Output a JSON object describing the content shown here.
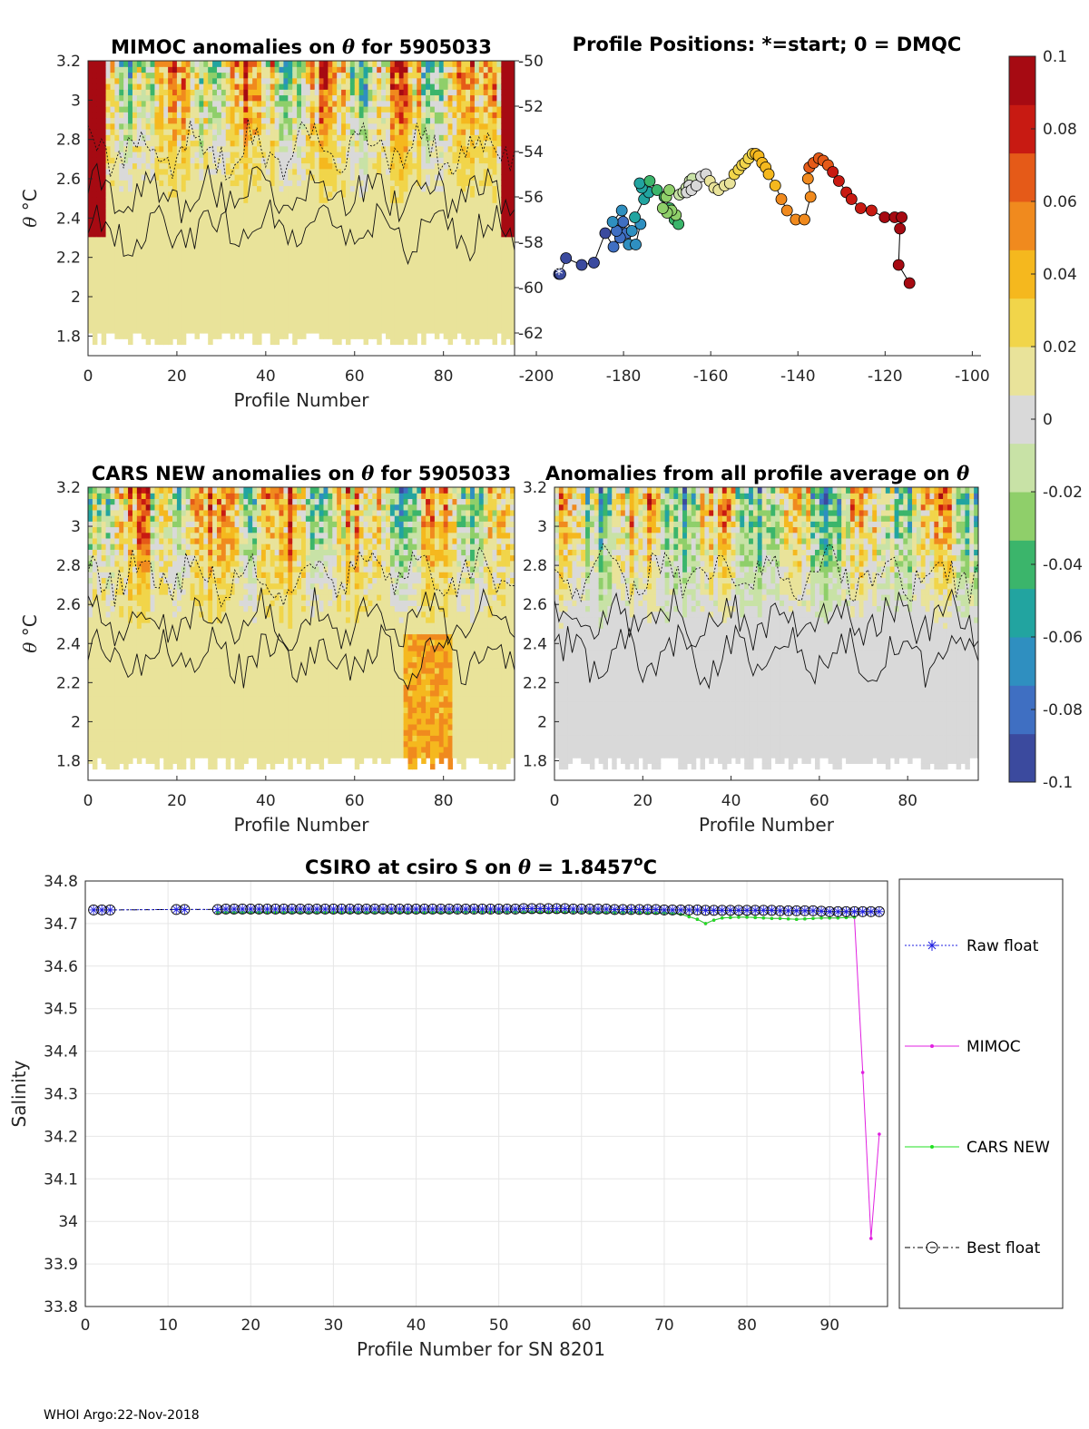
{
  "footer": "WHOI Argo:22-Nov-2018",
  "colors": {
    "colormap": [
      "#3b4a9e",
      "#3f6fc2",
      "#2f8fc0",
      "#22a4a0",
      "#3bb56b",
      "#8fcf6a",
      "#c8e2a6",
      "#d9d9d9",
      "#e9e39a",
      "#f1d54a",
      "#f5b81e",
      "#f08a1e",
      "#e55a18",
      "#c81a12",
      "#a60a12"
    ],
    "raw_float": "#1f1fe0",
    "mimoc": "#e020e0",
    "cars": "#20e020",
    "best": "#000000"
  },
  "chart_data": [
    {
      "id": "mimoc",
      "type": "heatmap",
      "title": "MIMOC anomalies on θ  for 5905033",
      "xlabel": "Profile Number",
      "ylabel": "θ °C",
      "xlim": [
        0,
        96
      ],
      "ylim": [
        1.7,
        3.2
      ],
      "xticks": [
        0,
        20,
        40,
        60,
        80
      ],
      "yticks": [
        1.8,
        2,
        2.2,
        2.4,
        2.6,
        2.8,
        3,
        3.2
      ],
      "ytick_labels": [
        "1.8",
        "2",
        "2.2",
        "2.4",
        "2.6",
        "2.8",
        "3",
        "3.2"
      ],
      "seed": 7
    },
    {
      "id": "positions",
      "type": "scatter",
      "title": "Profile Positions: *=start; 0 = DMQC",
      "xlim": [
        -205,
        -98
      ],
      "ylim": [
        -63,
        -50
      ],
      "xticks": [
        -200,
        -180,
        -160,
        -140,
        -120,
        -100
      ],
      "yticks": [
        -62,
        -60,
        -58,
        -56,
        -54,
        -52,
        -50
      ],
      "lon": [
        -194.8,
        -194.5,
        -193.2,
        -189.6,
        -186.8,
        -184.2,
        -182.3,
        -181.2,
        -180.1,
        -179.3,
        -180.8,
        -181.6,
        -182.5,
        -180.4,
        -178.1,
        -178.8,
        -177.2,
        -176.1,
        -177.4,
        -175.3,
        -174.2,
        -175.8,
        -176.3,
        -174.0,
        -172.3,
        -170.6,
        -169.4,
        -168.3,
        -167.4,
        -168.0,
        -169.0,
        -170.0,
        -171.0,
        -170.2,
        -169.5,
        -167.2,
        -166.3,
        -165.6,
        -164.8,
        -164.2,
        -164.9,
        -165.5,
        -164.4,
        -163.3,
        -162.2,
        -161.1,
        -160.2,
        -159.2,
        -158.2,
        -156.8,
        -155.6,
        -154.6,
        -153.6,
        -152.8,
        -152.1,
        -151.3,
        -150.4,
        -149.7,
        -149.0,
        -148.2,
        -147.4,
        -146.7,
        -145.2,
        -143.8,
        -142.5,
        -140.5,
        -138.5,
        -137.1,
        -137.7,
        -137.4,
        -136.4,
        -135.2,
        -134.2,
        -133.1,
        -132.0,
        -130.6,
        -128.9,
        -127.7,
        -125.6,
        -123.1,
        -120.1,
        -117.8,
        -116.2,
        -116.6,
        -116.9,
        -114.4
      ],
      "lat": [
        -59.4,
        -59.4,
        -58.7,
        -59.0,
        -58.9,
        -57.6,
        -58.2,
        -57.5,
        -57.1,
        -57.6,
        -57.8,
        -57.5,
        -57.1,
        -56.6,
        -57.5,
        -58.1,
        -58.1,
        -57.2,
        -56.9,
        -56.1,
        -55.8,
        -55.6,
        -55.4,
        -55.3,
        -55.7,
        -56.0,
        -56.5,
        -57.0,
        -57.2,
        -56.8,
        -56.6,
        -56.7,
        -56.5,
        -56.0,
        -55.7,
        -55.9,
        -55.8,
        -55.6,
        -55.3,
        -55.2,
        -55.5,
        -55.8,
        -55.7,
        -55.5,
        -55.1,
        -55.0,
        -55.3,
        -55.6,
        -55.7,
        -55.5,
        -55.4,
        -55.0,
        -54.8,
        -54.6,
        -54.5,
        -54.3,
        -54.1,
        -54.1,
        -54.2,
        -54.5,
        -54.7,
        -55.0,
        -55.5,
        -56.1,
        -56.6,
        -57.0,
        -57.0,
        -56.0,
        -55.2,
        -54.7,
        -54.5,
        -54.3,
        -54.4,
        -54.6,
        -54.9,
        -55.3,
        -55.8,
        -56.1,
        -56.5,
        -56.6,
        -56.9,
        -56.9,
        -56.9,
        -57.4,
        -59.0,
        -59.8
      ],
      "start_marker": "*"
    },
    {
      "id": "colorbar",
      "type": "heatmap",
      "title": "",
      "clim": [
        -0.1,
        0.1
      ],
      "ticks": [
        0.1,
        0.08,
        0.06,
        0.04,
        0.02,
        0,
        -0.02,
        -0.04,
        -0.06,
        -0.08,
        -0.1
      ],
      "tick_labels": [
        "0.1",
        "0.08",
        "0.06",
        "0.04",
        "0.02",
        "0",
        "-0.02",
        "-0.04",
        "-0.06",
        "-0.08",
        "-0.1"
      ]
    },
    {
      "id": "cars",
      "type": "heatmap",
      "title": "CARS NEW anomalies on θ for 5905033",
      "xlabel": "Profile Number",
      "ylabel": "θ °C",
      "xlim": [
        0,
        96
      ],
      "ylim": [
        1.7,
        3.2
      ],
      "xticks": [
        0,
        20,
        40,
        60,
        80
      ],
      "yticks": [
        1.8,
        2,
        2.2,
        2.4,
        2.6,
        2.8,
        3,
        3.2
      ],
      "ytick_labels": [
        "1.8",
        "2",
        "2.2",
        "2.4",
        "2.6",
        "2.8",
        "3",
        "3.2"
      ],
      "seed": 23
    },
    {
      "id": "allavg",
      "type": "heatmap",
      "title": "Anomalies from all profile average on θ",
      "xlabel": "Profile Number",
      "xlim": [
        0,
        96
      ],
      "ylim": [
        1.7,
        3.2
      ],
      "xticks": [
        0,
        20,
        40,
        60,
        80
      ],
      "yticks": [
        1.8,
        2,
        2.2,
        2.4,
        2.6,
        2.8,
        3,
        3.2
      ],
      "ytick_labels": [
        "1.8",
        "2",
        "2.2",
        "2.4",
        "2.6",
        "2.8",
        "3",
        "3.2"
      ],
      "seed": 51
    },
    {
      "id": "salinity",
      "type": "line",
      "title": "CSIRO at csiro S on θ = 1.8457°C",
      "xlabel": "Profile Number for SN 8201",
      "ylabel": "Salinity",
      "xlim": [
        0,
        97
      ],
      "ylim": [
        33.8,
        34.8
      ],
      "xticks": [
        0,
        10,
        20,
        30,
        40,
        50,
        60,
        70,
        80,
        90
      ],
      "yticks": [
        33.8,
        33.9,
        34,
        34.1,
        34.2,
        34.3,
        34.4,
        34.5,
        34.6,
        34.7,
        34.8
      ],
      "ytick_labels": [
        "33.8",
        "33.9",
        "34",
        "34.1",
        "34.2",
        "34.3",
        "34.4",
        "34.5",
        "34.6",
        "34.7",
        "34.8"
      ],
      "legend": [
        "Raw float",
        "MIMOC",
        "CARS NEW",
        "Best float"
      ],
      "float_x": [
        1,
        2,
        3,
        11,
        12,
        16,
        17,
        18,
        19,
        20,
        21,
        22,
        23,
        24,
        25,
        26,
        27,
        28,
        29,
        30,
        31,
        32,
        33,
        34,
        35,
        36,
        37,
        38,
        39,
        40,
        41,
        42,
        43,
        44,
        45,
        46,
        47,
        48,
        49,
        50,
        51,
        52,
        53,
        54,
        55,
        56,
        57,
        58,
        59,
        60,
        61,
        62,
        63,
        64,
        65,
        66,
        67,
        68,
        69,
        70,
        71,
        72,
        73,
        74,
        75,
        76,
        77,
        78,
        79,
        80,
        81,
        82,
        83,
        84,
        85,
        86,
        87,
        88,
        89,
        90,
        91,
        92,
        93,
        94,
        95,
        96
      ],
      "float_y": [
        34.732,
        34.732,
        34.732,
        34.733,
        34.733,
        34.733,
        34.734,
        34.734,
        34.734,
        34.734,
        34.734,
        34.734,
        34.734,
        34.734,
        34.734,
        34.734,
        34.734,
        34.734,
        34.734,
        34.734,
        34.734,
        34.734,
        34.734,
        34.734,
        34.734,
        34.734,
        34.734,
        34.734,
        34.734,
        34.734,
        34.734,
        34.734,
        34.734,
        34.734,
        34.734,
        34.734,
        34.734,
        34.734,
        34.734,
        34.734,
        34.734,
        34.734,
        34.735,
        34.735,
        34.735,
        34.735,
        34.735,
        34.735,
        34.734,
        34.734,
        34.734,
        34.734,
        34.734,
        34.733,
        34.733,
        34.733,
        34.733,
        34.733,
        34.733,
        34.732,
        34.732,
        34.732,
        34.732,
        34.732,
        34.731,
        34.731,
        34.731,
        34.731,
        34.731,
        34.731,
        34.731,
        34.731,
        34.731,
        34.73,
        34.73,
        34.73,
        34.73,
        34.73,
        34.729,
        34.728,
        34.728,
        34.728,
        34.728,
        34.728,
        34.728,
        34.728
      ],
      "mimoc_x": [
        16,
        17,
        18,
        19,
        20,
        21,
        22,
        23,
        24,
        25,
        26,
        27,
        28,
        29,
        30,
        31,
        32,
        33,
        34,
        35,
        36,
        37,
        38,
        39,
        40,
        41,
        42,
        43,
        44,
        45,
        46,
        47,
        48,
        49,
        50,
        51,
        52,
        53,
        54,
        55,
        56,
        57,
        58,
        59,
        60,
        61,
        62,
        63,
        64,
        65,
        66,
        67,
        68,
        69,
        70,
        71,
        72,
        73,
        74,
        75,
        76,
        77,
        78,
        79,
        80,
        81,
        82,
        83,
        84,
        85,
        86,
        87,
        88,
        89,
        90,
        91,
        92,
        93,
        94,
        95,
        96
      ],
      "mimoc_y": [
        34.725,
        34.726,
        34.726,
        34.726,
        34.726,
        34.726,
        34.726,
        34.726,
        34.726,
        34.726,
        34.726,
        34.726,
        34.726,
        34.726,
        34.726,
        34.726,
        34.726,
        34.726,
        34.726,
        34.726,
        34.726,
        34.726,
        34.726,
        34.726,
        34.726,
        34.726,
        34.726,
        34.726,
        34.726,
        34.727,
        34.727,
        34.727,
        34.727,
        34.727,
        34.727,
        34.727,
        34.727,
        34.727,
        34.727,
        34.727,
        34.727,
        34.727,
        34.727,
        34.727,
        34.727,
        34.727,
        34.726,
        34.726,
        34.726,
        34.726,
        34.726,
        34.726,
        34.725,
        34.725,
        34.725,
        34.724,
        34.722,
        34.716,
        34.71,
        34.7,
        34.708,
        34.713,
        34.714,
        34.715,
        34.715,
        34.714,
        34.713,
        34.712,
        34.712,
        34.711,
        34.71,
        34.711,
        34.712,
        34.713,
        34.713,
        34.713,
        34.714,
        34.715,
        34.35,
        33.96,
        34.205
      ],
      "cars_x": [
        16,
        17,
        18,
        19,
        20,
        21,
        22,
        23,
        24,
        25,
        26,
        27,
        28,
        29,
        30,
        31,
        32,
        33,
        34,
        35,
        36,
        37,
        38,
        39,
        40,
        41,
        42,
        43,
        44,
        45,
        46,
        47,
        48,
        49,
        50,
        51,
        52,
        53,
        54,
        55,
        56,
        57,
        58,
        59,
        60,
        61,
        62,
        63,
        64,
        65,
        66,
        67,
        68,
        69,
        70,
        71,
        72,
        73,
        74,
        75,
        76,
        77,
        78,
        79,
        80,
        81,
        82,
        83,
        84,
        85,
        86,
        87,
        88,
        89,
        90,
        91,
        92,
        93
      ],
      "cars_y": [
        34.726,
        34.726,
        34.726,
        34.726,
        34.726,
        34.726,
        34.726,
        34.726,
        34.726,
        34.726,
        34.726,
        34.726,
        34.726,
        34.726,
        34.726,
        34.726,
        34.726,
        34.726,
        34.726,
        34.726,
        34.726,
        34.726,
        34.726,
        34.726,
        34.726,
        34.726,
        34.726,
        34.726,
        34.726,
        34.727,
        34.727,
        34.727,
        34.727,
        34.727,
        34.727,
        34.727,
        34.727,
        34.727,
        34.727,
        34.727,
        34.727,
        34.727,
        34.727,
        34.727,
        34.727,
        34.727,
        34.726,
        34.726,
        34.726,
        34.726,
        34.726,
        34.726,
        34.725,
        34.725,
        34.725,
        34.724,
        34.722,
        34.716,
        34.71,
        34.7,
        34.708,
        34.713,
        34.714,
        34.715,
        34.715,
        34.714,
        34.713,
        34.712,
        34.712,
        34.711,
        34.71,
        34.711,
        34.712,
        34.713,
        34.713,
        34.713,
        34.714,
        34.715
      ]
    }
  ]
}
